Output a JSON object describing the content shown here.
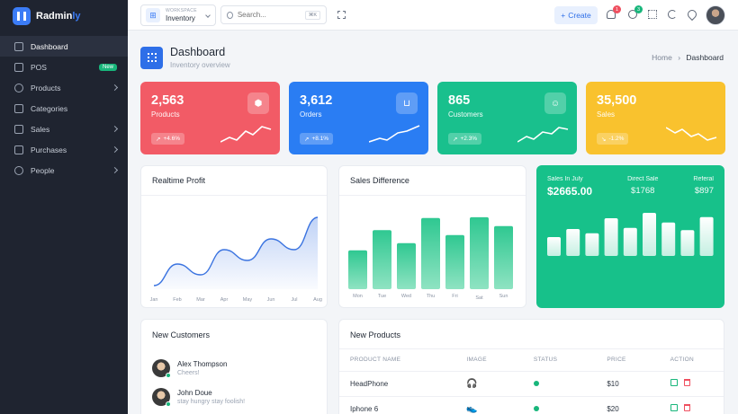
{
  "brand": {
    "name": "Radmin",
    "suffix": "ly",
    "accent": "#3b7cf6"
  },
  "sidebar": {
    "items": [
      {
        "label": "Dashboard",
        "icon": "home-icon",
        "active": true
      },
      {
        "label": "POS",
        "icon": "monitor-icon",
        "badge": "New"
      },
      {
        "label": "Products",
        "icon": "headphones-icon",
        "chevron": true
      },
      {
        "label": "Categories",
        "icon": "tag-icon"
      },
      {
        "label": "Sales",
        "icon": "cart-icon",
        "chevron": true
      },
      {
        "label": "Purchases",
        "icon": "truck-icon",
        "chevron": true
      },
      {
        "label": "People",
        "icon": "users-icon",
        "chevron": true
      }
    ]
  },
  "topbar": {
    "workspace_label": "WORKSPACE",
    "workspace_value": "Inventory",
    "search_placeholder": "Search...",
    "search_shortcut": "⌘K",
    "create_label": "Create",
    "notifications_count": "1",
    "messages_count": "3"
  },
  "page": {
    "title": "Dashboard",
    "subtitle": "Inventory overview",
    "breadcrumb_home": "Home",
    "breadcrumb_current": "Dashboard"
  },
  "stats": [
    {
      "value": "2,563",
      "label": "Products",
      "change": "+4.6%",
      "color": "#f25b66",
      "icon": "box-icon"
    },
    {
      "value": "3,612",
      "label": "Orders",
      "change": "+8.1%",
      "color": "#2a7df3",
      "icon": "cart-icon"
    },
    {
      "value": "865",
      "label": "Customers",
      "change": "+2.3%",
      "color": "#19c08d",
      "icon": "user-icon"
    },
    {
      "value": "35,500",
      "label": "Sales",
      "change": "-1.2%",
      "color": "#f9c22e",
      "icon": ""
    }
  ],
  "realtime_profit": {
    "title": "Realtime Profit",
    "chart_data": {
      "type": "area",
      "categories": [
        "Jan",
        "Feb",
        "Mar",
        "Apr",
        "May",
        "Jun",
        "Jul",
        "Aug"
      ],
      "values": [
        5,
        35,
        20,
        55,
        40,
        70,
        55,
        100
      ],
      "ylim": [
        0,
        110
      ]
    }
  },
  "sales_difference": {
    "title": "Sales Difference",
    "chart_data": {
      "type": "bar",
      "categories": [
        "Mon",
        "Tue",
        "Wed",
        "Thu",
        "Fri",
        "Sat",
        "Sun"
      ],
      "values": [
        48,
        73,
        57,
        88,
        67,
        89,
        78
      ],
      "ylim": [
        0,
        100
      ]
    }
  },
  "sales_july": {
    "label": "Sales In July",
    "value": "$2665.00",
    "direct_label": "Direct Sale",
    "direct_value": "$1768",
    "referral_label": "Referal",
    "referral_value": "$897",
    "chart_data": {
      "type": "bar",
      "values": [
        35,
        50,
        42,
        70,
        52,
        80,
        62,
        48,
        72
      ],
      "ylim": [
        0,
        100
      ]
    }
  },
  "new_customers": {
    "title": "New Customers",
    "items": [
      {
        "name": "Alex Thompson",
        "message": "Cheers!"
      },
      {
        "name": "John Doue",
        "message": "stay hungry stay foolish!"
      }
    ]
  },
  "new_products": {
    "title": "New Products",
    "columns": [
      "PRODUCT NAME",
      "IMAGE",
      "STATUS",
      "PRICE",
      "ACTION"
    ],
    "rows": [
      {
        "name": "HeadPhone",
        "image": "🎧",
        "price": "$10"
      },
      {
        "name": "Iphone 6",
        "image": "👟",
        "price": "$20"
      }
    ]
  }
}
